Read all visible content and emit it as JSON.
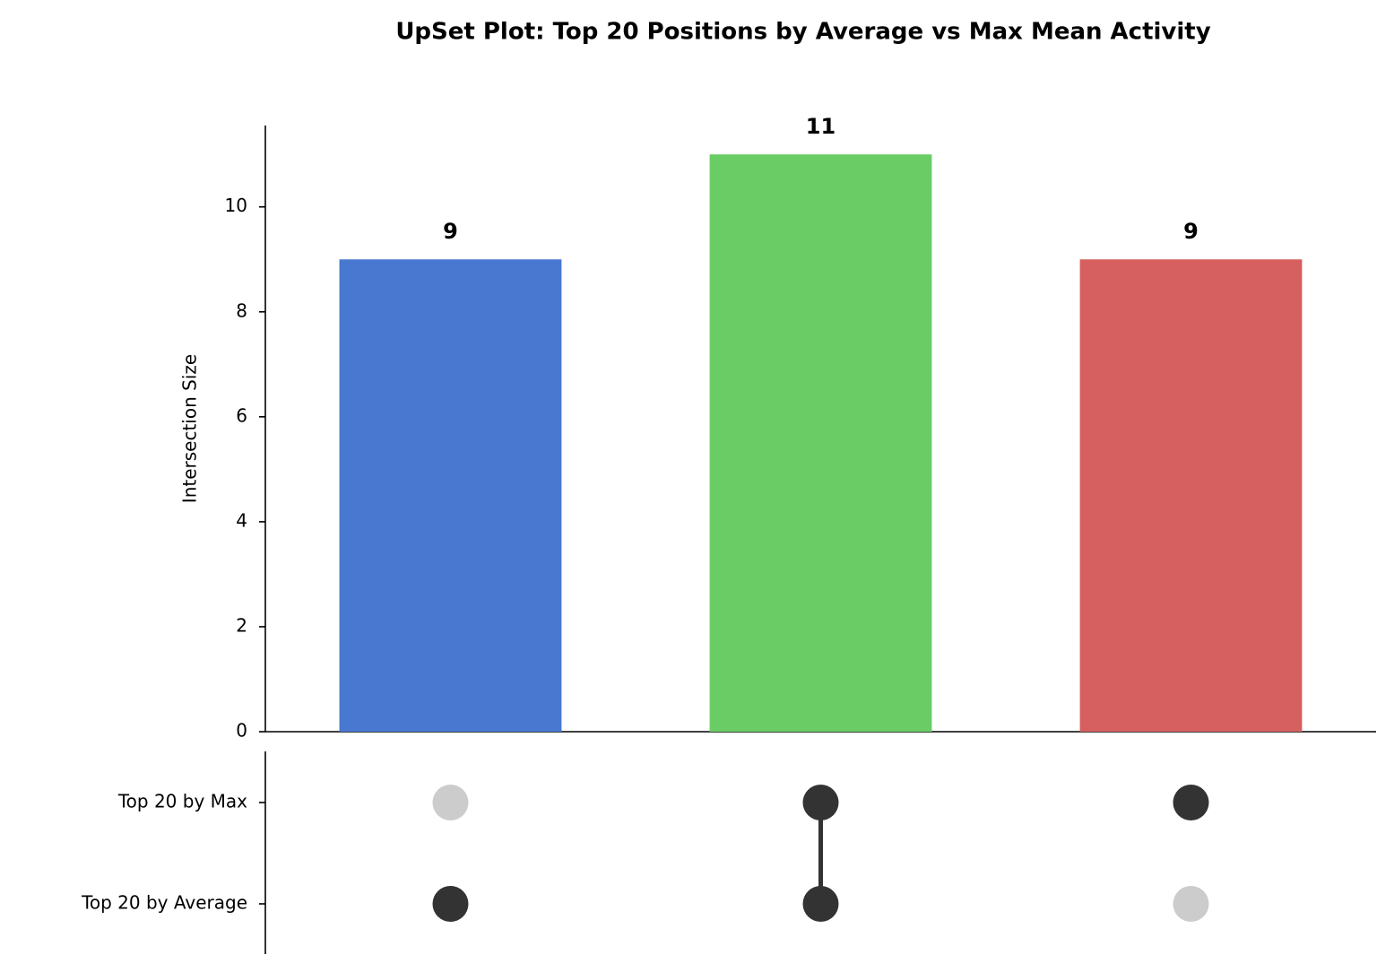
{
  "chart_data": {
    "type": "upset",
    "title": "UpSet Plot: Top 20 Positions by Average vs Max Mean Activity",
    "ylabel": "Intersection Size",
    "values": [
      9,
      11,
      9
    ],
    "colors": [
      "#4878cf",
      "#6acc65",
      "#d65f5f"
    ],
    "ylim": [
      0,
      11.55
    ],
    "yticks": [
      0,
      2,
      4,
      6,
      8,
      10
    ],
    "sets": [
      "Top 20 by Max",
      "Top 20 by Average"
    ],
    "membership": [
      [
        false,
        true
      ],
      [
        true,
        true
      ],
      [
        true,
        false
      ]
    ],
    "active_color": "#333333",
    "inactive_color": "#cccccc"
  }
}
